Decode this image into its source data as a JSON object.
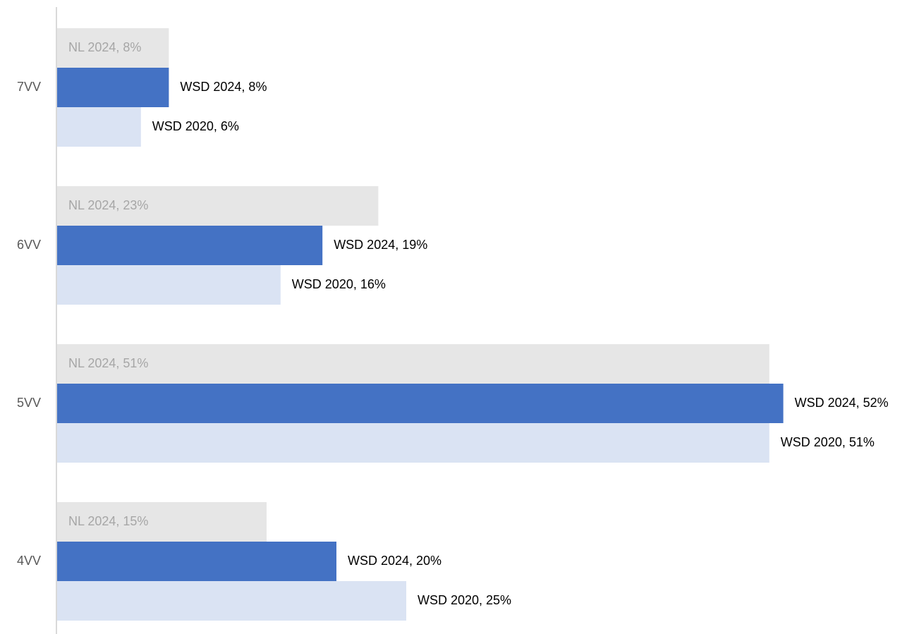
{
  "chart_data": {
    "type": "bar",
    "orientation": "horizontal",
    "categories": [
      "7VV",
      "6VV",
      "5VV",
      "4VV"
    ],
    "series": [
      {
        "name": "NL 2024",
        "color": "#e6e6e6",
        "label_color": "#a6a6a6",
        "label_inside": true,
        "values": [
          8,
          23,
          51,
          15
        ],
        "value_labels": [
          "NL 2024, 8%",
          "NL 2024, 23%",
          "NL 2024, 51%",
          "NL 2024, 15%"
        ]
      },
      {
        "name": "WSD 2024",
        "color": "#4472c4",
        "label_color": "#000000",
        "label_inside": false,
        "values": [
          8,
          19,
          52,
          20
        ],
        "value_labels": [
          "WSD 2024, 8%",
          "WSD 2024, 19%",
          "WSD 2024, 52%",
          "WSD 2024, 20%"
        ]
      },
      {
        "name": "WSD 2020",
        "color": "#dae3f3",
        "label_color": "#000000",
        "label_inside": false,
        "values": [
          6,
          16,
          51,
          25
        ],
        "value_labels": [
          "WSD 2020, 6%",
          "WSD 2020, 16%",
          "WSD 2020, 51%",
          "WSD 2020, 25%"
        ]
      }
    ]
  }
}
